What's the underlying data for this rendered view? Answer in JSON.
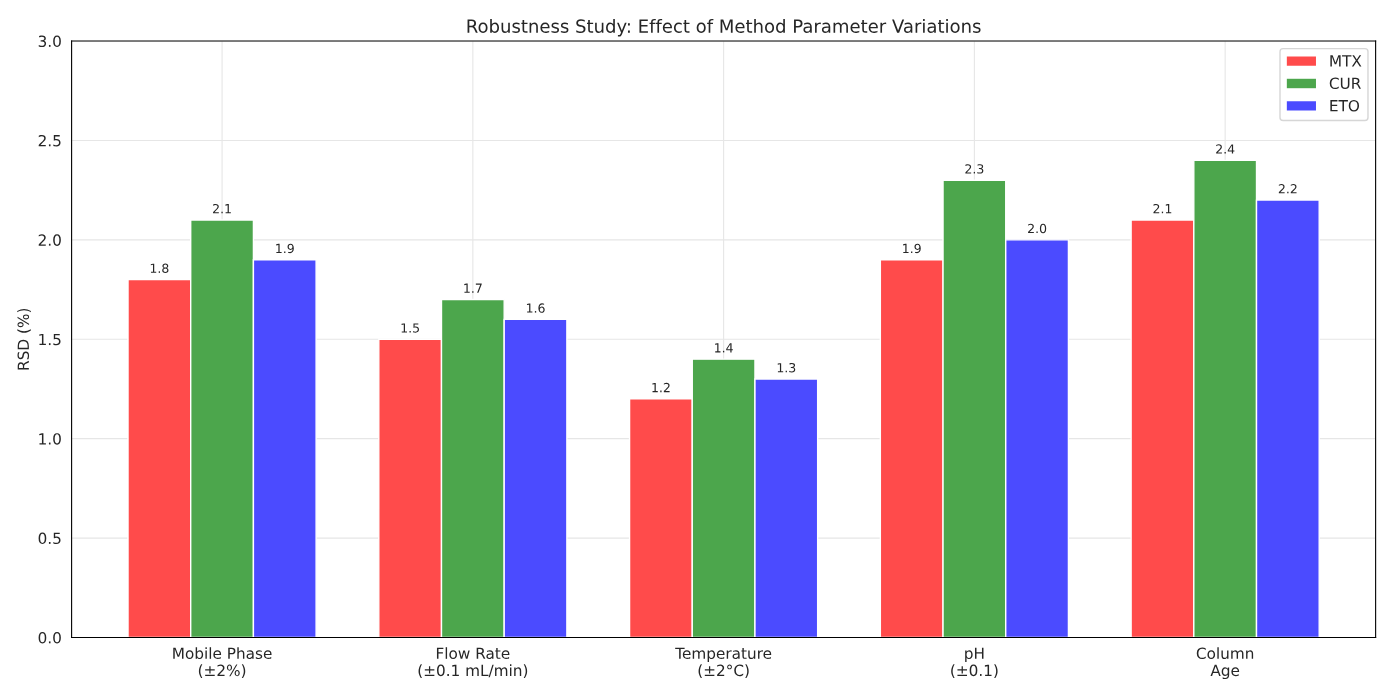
{
  "chart_data": {
    "type": "bar",
    "title": "Robustness Study: Effect of Method Parameter Variations",
    "ylabel": "RSD (%)",
    "categories": [
      "Mobile Phase\n(±2%)",
      "Flow Rate\n(±0.1 mL/min)",
      "Temperature\n(±2°C)",
      "pH\n(±0.1)",
      "Column\nAge"
    ],
    "series": [
      {
        "name": "MTX",
        "color": "#ff4b4b",
        "values": [
          1.8,
          1.5,
          1.2,
          1.9,
          2.1
        ],
        "value_labels": [
          "1.8",
          "1.5",
          "1.2",
          "1.9",
          "2.1"
        ]
      },
      {
        "name": "CUR",
        "color": "#4ca64c",
        "values": [
          2.1,
          1.7,
          1.4,
          2.3,
          2.4
        ],
        "value_labels": [
          "2.1",
          "1.7",
          "1.4",
          "2.3",
          "2.4"
        ]
      },
      {
        "name": "ETO",
        "color": "#4b4bff",
        "values": [
          1.9,
          1.6,
          1.3,
          2.0,
          2.2
        ],
        "value_labels": [
          "1.9",
          "1.6",
          "1.3",
          "2.0",
          "2.2"
        ]
      }
    ],
    "ylim": [
      0,
      3
    ],
    "yticks": [
      {
        "value": 0,
        "label": "0.0"
      },
      {
        "value": 0.5,
        "label": "0.5"
      },
      {
        "value": 1,
        "label": "1.0"
      },
      {
        "value": 1.5,
        "label": "1.5"
      },
      {
        "value": 2,
        "label": "2.0"
      },
      {
        "value": 2.5,
        "label": "2.5"
      },
      {
        "value": 3,
        "label": "3.0"
      }
    ],
    "grid": true,
    "legend": "top right"
  }
}
